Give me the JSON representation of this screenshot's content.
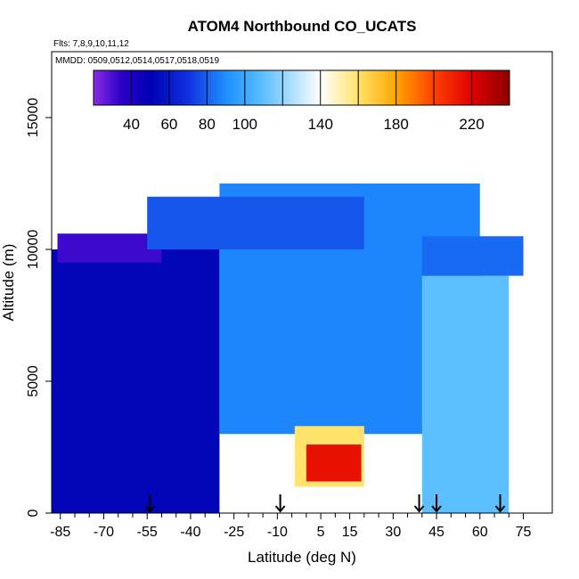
{
  "chart_data": {
    "type": "heatmap",
    "title": "ATOM4 Northbound CO_UCATS",
    "flights_label": "Flts: 7,8,9,10,11,12",
    "dates_label": "MMDD: 0509,0512,0514,0517,0518,0519",
    "xlabel": "Latitude (deg N)",
    "ylabel": "Altitude (m)",
    "xlim": [
      -88,
      85
    ],
    "ylim": [
      0,
      17500
    ],
    "x_ticks": [
      -85,
      -70,
      -55,
      -40,
      -25,
      -10,
      5,
      15,
      30,
      45,
      60,
      75
    ],
    "y_ticks": [
      0,
      5000,
      10000,
      15000
    ],
    "grid": false,
    "colorbar": {
      "position": "top",
      "range": [
        20,
        240
      ],
      "tick_values": [
        40,
        60,
        80,
        100,
        140,
        180,
        220
      ],
      "stops": [
        {
          "value": 20,
          "color": "#8a2be2"
        },
        {
          "value": 35,
          "color": "#2a00c8"
        },
        {
          "value": 50,
          "color": "#0000b4"
        },
        {
          "value": 70,
          "color": "#1030e0"
        },
        {
          "value": 90,
          "color": "#1e90ff"
        },
        {
          "value": 110,
          "color": "#5cc0ff"
        },
        {
          "value": 140,
          "color": "#ffffff"
        },
        {
          "value": 160,
          "color": "#ffe36a"
        },
        {
          "value": 180,
          "color": "#ffa500"
        },
        {
          "value": 200,
          "color": "#ff4000"
        },
        {
          "value": 220,
          "color": "#e00000"
        },
        {
          "value": 240,
          "color": "#8b0000"
        }
      ]
    },
    "z_regions": [
      {
        "region": "southern-high-latitudes",
        "lat": [
          -88,
          -30
        ],
        "alt": [
          0,
          10000
        ],
        "co": 52
      },
      {
        "region": "southern-upper-troposphere",
        "lat": [
          -86,
          -50
        ],
        "alt": [
          9500,
          10600
        ],
        "co": 32
      },
      {
        "region": "tropical-free-troposphere",
        "lat": [
          -30,
          60
        ],
        "alt": [
          3000,
          12500
        ],
        "co": 88
      },
      {
        "region": "southern-upper-troposphere-band",
        "lat": [
          -55,
          20
        ],
        "alt": [
          10000,
          12000
        ],
        "co": 78
      },
      {
        "region": "tropical-boundary-layer-plume",
        "lat": [
          -4,
          20
        ],
        "alt": [
          1000,
          3300
        ],
        "co": 160
      },
      {
        "region": "tropical-boundary-layer-plume-core",
        "lat": [
          0,
          19
        ],
        "alt": [
          1200,
          2600
        ],
        "co": 215
      },
      {
        "region": "northern-midlatitudes",
        "lat": [
          40,
          70
        ],
        "alt": [
          0,
          9000
        ],
        "co": 110
      },
      {
        "region": "northern-upper-troposphere",
        "lat": [
          40,
          75
        ],
        "alt": [
          9000,
          10500
        ],
        "co": 82
      }
    ],
    "profile_markers_lat": [
      -54,
      -9,
      39,
      45,
      67
    ]
  }
}
